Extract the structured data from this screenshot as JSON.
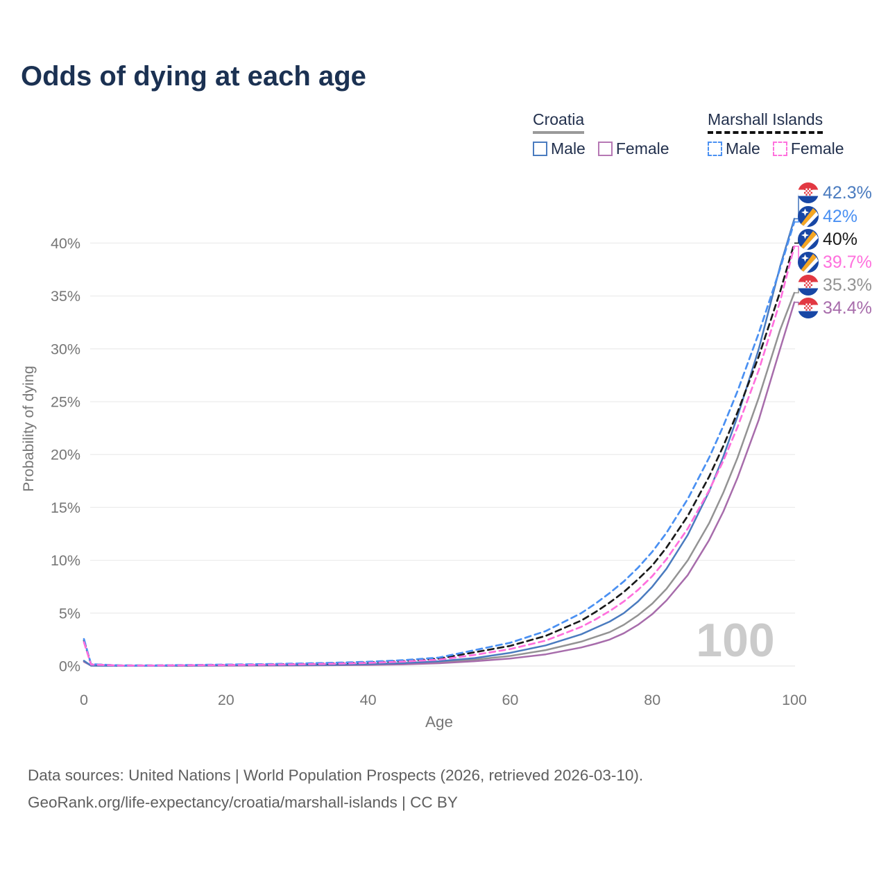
{
  "title": "Odds of dying at each age",
  "watermark": "100",
  "legend": {
    "groups": [
      {
        "name": "Croatia",
        "line_style": "solid",
        "underline_color": "#9a9a9a",
        "items": [
          {
            "label": "Male",
            "color": "#4a7bbf"
          },
          {
            "label": "Female",
            "color": "#b678b4"
          }
        ]
      },
      {
        "name": "Marshall Islands",
        "line_style": "dashed",
        "underline_color": "#111111",
        "items": [
          {
            "label": "Male",
            "color": "#4a90f2"
          },
          {
            "label": "Female",
            "color": "#ff70dd"
          }
        ]
      }
    ]
  },
  "footer": {
    "line1": "Data sources: United Nations | World Population Prospects (2026, retrieved 2026-03-10).",
    "line2": "GeoRank.org/life-expectancy/croatia/marshall-islands | CC BY"
  },
  "chart_data": {
    "type": "line",
    "title": "Odds of dying at each age",
    "xlabel": "Age",
    "ylabel": "Probability of dying",
    "x_ticks": [
      0,
      20,
      40,
      60,
      80,
      100
    ],
    "y_ticks_percent": [
      0,
      5,
      10,
      15,
      20,
      25,
      30,
      35,
      40
    ],
    "xlim": [
      0,
      100
    ],
    "ylim_percent": [
      0,
      44
    ],
    "grid": "horizontal-only",
    "grid_color": "#ececec",
    "axis_text_color": "#767676",
    "watermark_color": "#cbcbcb",
    "ages": [
      0,
      1,
      5,
      10,
      15,
      20,
      25,
      30,
      35,
      40,
      45,
      50,
      55,
      60,
      65,
      70,
      72,
      74,
      76,
      78,
      80,
      82,
      85,
      88,
      90,
      92,
      95,
      98,
      100
    ],
    "series": [
      {
        "name": "Croatia Male",
        "country": "Croatia",
        "sex": "Male",
        "line": "solid",
        "color": "#4a7bbf",
        "flag": "croatia",
        "end_label": "42.3%",
        "end_value": 42.3,
        "values": [
          0.5,
          0.04,
          0.015,
          0.015,
          0.04,
          0.07,
          0.08,
          0.09,
          0.12,
          0.18,
          0.28,
          0.45,
          0.75,
          1.25,
          1.95,
          3.0,
          3.6,
          4.2,
          5.0,
          6.1,
          7.5,
          9.2,
          12.4,
          16.5,
          19.8,
          23.6,
          30.0,
          37.8,
          42.3
        ]
      },
      {
        "name": "Marshall Islands Male",
        "country": "Marshall Islands",
        "sex": "Male",
        "line": "dashed",
        "color": "#4a90f2",
        "flag": "marshall-islands",
        "end_label": "42%",
        "end_value": 42.0,
        "values": [
          2.55,
          0.18,
          0.06,
          0.06,
          0.1,
          0.14,
          0.18,
          0.23,
          0.3,
          0.4,
          0.55,
          0.8,
          1.5,
          2.2,
          3.3,
          5.0,
          5.9,
          6.9,
          8.0,
          9.3,
          10.8,
          12.6,
          15.8,
          19.7,
          22.7,
          26.0,
          31.5,
          37.6,
          42.0
        ]
      },
      {
        "name": "Marshall Islands Both sexes",
        "country": "Marshall Islands",
        "sex": "Both",
        "line": "dashed",
        "color": "#1a1a1a",
        "flag": "marshall-islands",
        "end_label": "40%",
        "end_value": 40.0,
        "values": [
          2.4,
          0.16,
          0.05,
          0.05,
          0.08,
          0.11,
          0.14,
          0.19,
          0.25,
          0.34,
          0.48,
          0.7,
          1.3,
          1.9,
          2.85,
          4.3,
          5.1,
          6.0,
          7.0,
          8.2,
          9.5,
          11.2,
          14.2,
          17.9,
          20.8,
          24.0,
          29.3,
          35.4,
          40.0
        ]
      },
      {
        "name": "Marshall Islands Female",
        "country": "Marshall Islands",
        "sex": "Female",
        "line": "dashed",
        "color": "#ff70dd",
        "flag": "marshall-islands",
        "end_label": "39.7%",
        "end_value": 39.7,
        "values": [
          2.25,
          0.14,
          0.045,
          0.045,
          0.07,
          0.09,
          0.12,
          0.16,
          0.21,
          0.29,
          0.42,
          0.6,
          1.05,
          1.6,
          2.4,
          3.7,
          4.4,
          5.2,
          6.1,
          7.2,
          8.5,
          10.1,
          13.0,
          16.6,
          19.4,
          22.6,
          28.0,
          34.5,
          39.7
        ]
      },
      {
        "name": "Croatia Both sexes",
        "country": "Croatia",
        "sex": "Both",
        "line": "solid",
        "color": "#939393",
        "flag": "croatia",
        "end_label": "35.3%",
        "end_value": 35.3,
        "values": [
          0.45,
          0.035,
          0.012,
          0.012,
          0.03,
          0.05,
          0.06,
          0.07,
          0.09,
          0.14,
          0.22,
          0.35,
          0.6,
          0.95,
          1.5,
          2.3,
          2.75,
          3.2,
          3.9,
          4.8,
          5.9,
          7.3,
          10.0,
          13.5,
          16.4,
          19.7,
          25.4,
          31.8,
          35.3
        ]
      },
      {
        "name": "Croatia Female",
        "country": "Croatia",
        "sex": "Female",
        "line": "solid",
        "color": "#a76cab",
        "flag": "croatia",
        "end_label": "34.4%",
        "end_value": 34.4,
        "values": [
          0.4,
          0.03,
          0.01,
          0.01,
          0.025,
          0.035,
          0.04,
          0.05,
          0.07,
          0.1,
          0.16,
          0.26,
          0.45,
          0.7,
          1.1,
          1.75,
          2.1,
          2.5,
          3.1,
          3.9,
          4.9,
          6.2,
          8.6,
          11.9,
          14.6,
          17.8,
          23.3,
          30.0,
          34.4
        ]
      }
    ],
    "flag_colors": {
      "croatia": {
        "red": "#e23842",
        "white": "#ffffff",
        "blue": "#1847a5"
      },
      "marshall-islands": {
        "blue": "#1847a5",
        "orange": "#f5a623",
        "white": "#ffffff"
      }
    }
  }
}
